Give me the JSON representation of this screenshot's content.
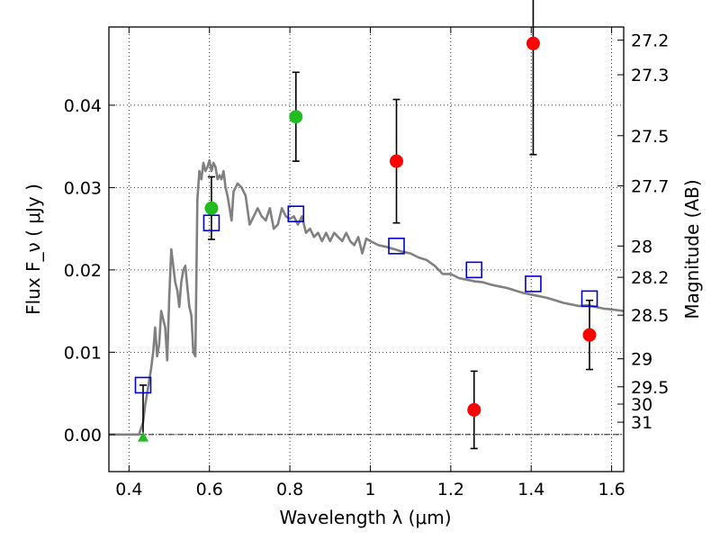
{
  "chart_data": {
    "type": "scatter",
    "xlabel": "Wavelength  λ (μm)",
    "ylabel": "Flux  F_ν  ( μJy )",
    "y2label": "Magnitude (AB)",
    "xlim": [
      0.35,
      1.63
    ],
    "ylim": [
      -0.0045,
      0.0495
    ],
    "grid": true,
    "x_ticks": [
      0.4,
      0.6,
      0.8,
      1.0,
      1.2,
      1.4,
      1.6
    ],
    "x_tick_labels": [
      "0.4",
      "0.6",
      "0.8",
      "1",
      "1.2",
      "1.4",
      "1.6"
    ],
    "y_ticks": [
      0.0,
      0.01,
      0.02,
      0.03,
      0.04
    ],
    "y_tick_labels": [
      "0.00",
      "0.01",
      "0.02",
      "0.03",
      "0.04"
    ],
    "y2_ticks": [
      {
        "label": "27.2",
        "flux": 0.0479
      },
      {
        "label": "27.3",
        "flux": 0.0437
      },
      {
        "label": "27.5",
        "flux": 0.0363
      },
      {
        "label": "27.7",
        "flux": 0.0302
      },
      {
        "label": "28",
        "flux": 0.0229
      },
      {
        "label": "28.2",
        "flux": 0.0191
      },
      {
        "label": "28.5",
        "flux": 0.0145
      },
      {
        "label": "29",
        "flux": 0.0092
      },
      {
        "label": "29.5",
        "flux": 0.0058
      },
      {
        "label": "30",
        "flux": 0.0037
      },
      {
        "label": "31",
        "flux": 0.0015
      }
    ],
    "series": [
      {
        "kind": "sed_model",
        "color": "#808080",
        "x": [
          0.35,
          0.425,
          0.435,
          0.44,
          0.445,
          0.45,
          0.455,
          0.46,
          0.465,
          0.47,
          0.475,
          0.48,
          0.485,
          0.49,
          0.495,
          0.5,
          0.505,
          0.51,
          0.515,
          0.52,
          0.525,
          0.53,
          0.535,
          0.54,
          0.545,
          0.55,
          0.555,
          0.56,
          0.565,
          0.57,
          0.575,
          0.58,
          0.585,
          0.59,
          0.595,
          0.6,
          0.605,
          0.61,
          0.615,
          0.62,
          0.625,
          0.63,
          0.635,
          0.64,
          0.645,
          0.65,
          0.655,
          0.66,
          0.67,
          0.68,
          0.69,
          0.7,
          0.71,
          0.72,
          0.73,
          0.74,
          0.75,
          0.76,
          0.77,
          0.78,
          0.79,
          0.8,
          0.81,
          0.82,
          0.83,
          0.84,
          0.85,
          0.86,
          0.87,
          0.88,
          0.89,
          0.9,
          0.91,
          0.92,
          0.93,
          0.94,
          0.95,
          0.96,
          0.97,
          0.98,
          0.99,
          1.0,
          1.02,
          1.04,
          1.06,
          1.08,
          1.1,
          1.12,
          1.14,
          1.16,
          1.18,
          1.2,
          1.22,
          1.24,
          1.26,
          1.28,
          1.3,
          1.32,
          1.34,
          1.36,
          1.38,
          1.4,
          1.42,
          1.44,
          1.46,
          1.48,
          1.5,
          1.52,
          1.54,
          1.56,
          1.58,
          1.6,
          1.63
        ],
        "y": [
          0.0,
          0.0,
          0.0015,
          0.0035,
          0.005,
          0.0065,
          0.008,
          0.01,
          0.013,
          0.0095,
          0.011,
          0.015,
          0.014,
          0.013,
          0.009,
          0.0165,
          0.0225,
          0.0205,
          0.0185,
          0.0175,
          0.0155,
          0.0185,
          0.02,
          0.0205,
          0.018,
          0.0155,
          0.0145,
          0.01,
          0.0095,
          0.0285,
          0.032,
          0.031,
          0.033,
          0.032,
          0.0325,
          0.0333,
          0.032,
          0.033,
          0.0325,
          0.031,
          0.0315,
          0.031,
          0.032,
          0.03,
          0.029,
          0.0275,
          0.026,
          0.0295,
          0.0305,
          0.03,
          0.029,
          0.0255,
          0.0265,
          0.0275,
          0.0265,
          0.026,
          0.0275,
          0.025,
          0.0255,
          0.0275,
          0.0265,
          0.0262,
          0.0265,
          0.0255,
          0.0265,
          0.0245,
          0.025,
          0.024,
          0.0245,
          0.0235,
          0.0245,
          0.0235,
          0.0245,
          0.024,
          0.0235,
          0.0245,
          0.0235,
          0.023,
          0.024,
          0.022,
          0.0238,
          0.0235,
          0.023,
          0.0228,
          0.0225,
          0.0222,
          0.022,
          0.0215,
          0.0212,
          0.0205,
          0.0195,
          0.0195,
          0.019,
          0.0188,
          0.0186,
          0.0185,
          0.0182,
          0.018,
          0.0178,
          0.0175,
          0.0172,
          0.017,
          0.0168,
          0.0166,
          0.0163,
          0.016,
          0.0158,
          0.0156,
          0.0157,
          0.0155,
          0.0153,
          0.0152,
          0.015
        ]
      },
      {
        "kind": "model_photometry",
        "marker": "square",
        "color": "#0000cc",
        "x": [
          0.435,
          0.605,
          0.815,
          1.065,
          1.258,
          1.405,
          1.545
        ],
        "y": [
          0.006,
          0.0257,
          0.0268,
          0.0229,
          0.02,
          0.0183,
          0.0165
        ]
      },
      {
        "kind": "observed_detection",
        "marker": "circle",
        "color": "#22bb22",
        "x": [
          0.605,
          0.815
        ],
        "y": [
          0.0275,
          0.0386
        ],
        "yerr": [
          0.0038,
          0.0054
        ]
      },
      {
        "kind": "observed_detection",
        "marker": "circle",
        "color": "#ff0000",
        "x": [
          1.065,
          1.258,
          1.405,
          1.545
        ],
        "y": [
          0.0332,
          0.003,
          0.0475,
          0.0121
        ],
        "yerr": [
          0.0075,
          0.0047,
          0.0135,
          0.0042
        ]
      },
      {
        "kind": "observed_upper",
        "marker": "triangle",
        "color": "#22bb22",
        "x": [
          0.435
        ],
        "y": [
          -0.0003
        ],
        "yerr": [
          0.006
        ]
      }
    ]
  }
}
